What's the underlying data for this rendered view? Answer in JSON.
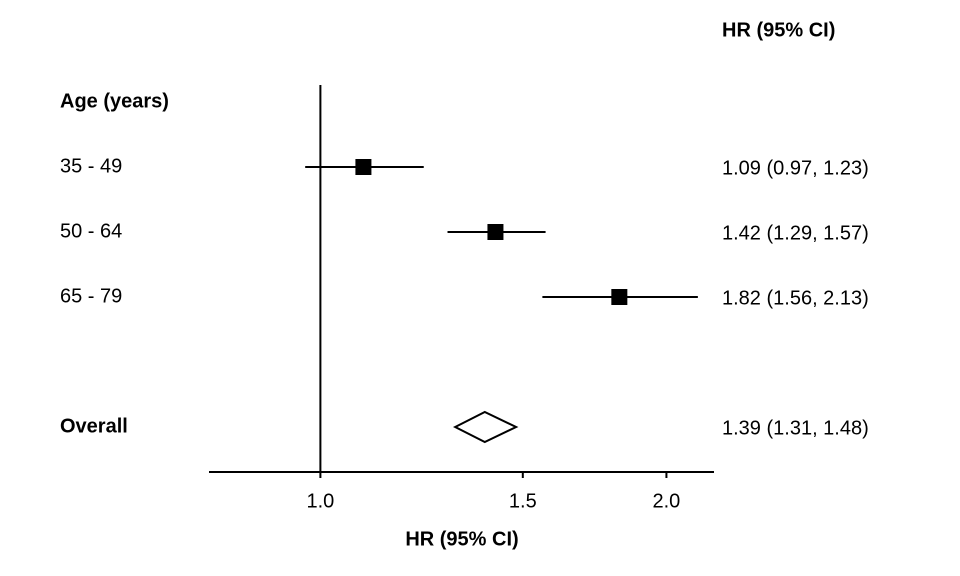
{
  "chart_data": {
    "type": "forest",
    "column_header": "HR (95% CI)",
    "xlabel": "HR (95% CI)",
    "group_label": "Age (years)",
    "categories": [
      "35 - 49",
      "50 - 64",
      "65 - 79"
    ],
    "values": [
      1.09,
      1.42,
      1.82
    ],
    "lower": [
      0.97,
      1.29,
      1.56
    ],
    "upper": [
      1.23,
      1.57,
      2.13
    ],
    "value_labels": [
      "1.09 (0.97, 1.23)",
      "1.42 (1.29, 1.57)",
      "1.82 (1.56, 2.13)"
    ],
    "overall": {
      "label": "Overall",
      "value": 1.39,
      "lower": 1.31,
      "upper": 1.48,
      "value_label": "1.39 (1.31, 1.48)"
    },
    "reference": 1,
    "xscale": "log",
    "xlim": [
      0.8,
      2.2
    ],
    "xticks": [
      {
        "value": 1,
        "label": "1.0"
      },
      {
        "value": 1.5,
        "label": "1.5"
      },
      {
        "value": 2,
        "label": "2.0"
      }
    ],
    "color": "#000000"
  }
}
